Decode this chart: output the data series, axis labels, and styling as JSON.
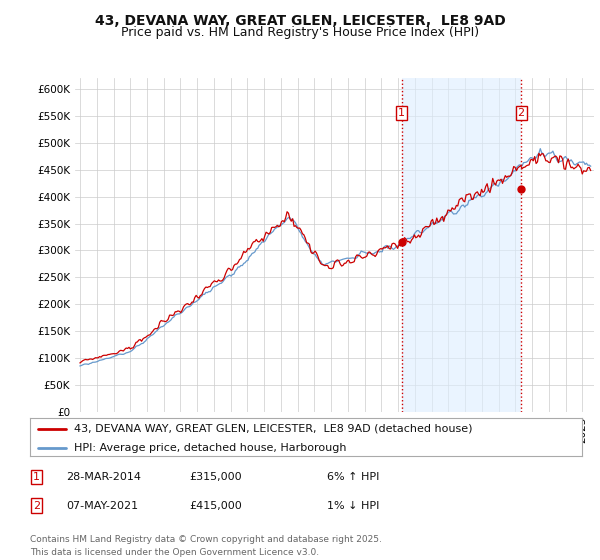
{
  "title": "43, DEVANA WAY, GREAT GLEN, LEICESTER,  LE8 9AD",
  "subtitle": "Price paid vs. HM Land Registry's House Price Index (HPI)",
  "ylabel_ticks": [
    0,
    50000,
    100000,
    150000,
    200000,
    250000,
    300000,
    350000,
    400000,
    450000,
    500000,
    550000,
    600000
  ],
  "ylabel_labels": [
    "£0",
    "£50K",
    "£100K",
    "£150K",
    "£200K",
    "£250K",
    "£300K",
    "£350K",
    "£400K",
    "£450K",
    "£500K",
    "£550K",
    "£600K"
  ],
  "ylim": [
    0,
    620000
  ],
  "xlim_start": 1994.7,
  "xlim_end": 2025.7,
  "background_color": "#ffffff",
  "plot_bg_color": "#ffffff",
  "grid_color": "#cccccc",
  "shade_color": "#ddeeff",
  "line1_color": "#cc0000",
  "line2_color": "#6699cc",
  "vline_color": "#cc0000",
  "vline_style": ":",
  "transaction1_x": 2014.22,
  "transaction1_y": 315000,
  "transaction2_x": 2021.35,
  "transaction2_y": 415000,
  "legend_line1": "43, DEVANA WAY, GREAT GLEN, LEICESTER,  LE8 9AD (detached house)",
  "legend_line2": "HPI: Average price, detached house, Harborough",
  "ann1_num": "1",
  "ann1_date": "28-MAR-2014",
  "ann1_price": "£315,000",
  "ann1_hpi": "6% ↑ HPI",
  "ann2_num": "2",
  "ann2_date": "07-MAY-2021",
  "ann2_price": "£415,000",
  "ann2_hpi": "1% ↓ HPI",
  "footer": "Contains HM Land Registry data © Crown copyright and database right 2025.\nThis data is licensed under the Open Government Licence v3.0.",
  "title_fontsize": 10,
  "subtitle_fontsize": 9,
  "tick_fontsize": 7.5,
  "legend_fontsize": 8,
  "ann_fontsize": 8,
  "footer_fontsize": 6.5
}
